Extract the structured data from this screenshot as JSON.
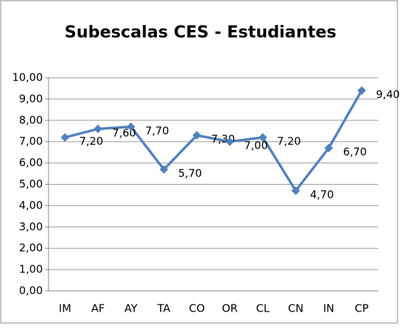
{
  "chart_data": {
    "type": "line",
    "title": "Subescalas CES - Estudiantes",
    "categories": [
      "IM",
      "AF",
      "AY",
      "TA",
      "CO",
      "OR",
      "CL",
      "CN",
      "IN",
      "CP"
    ],
    "values": [
      7.2,
      7.6,
      7.7,
      5.7,
      7.3,
      7.0,
      7.2,
      4.7,
      6.7,
      9.4
    ],
    "value_labels": [
      "7,20",
      "7,60",
      "7,70",
      "5,70",
      "7,30",
      "7,00",
      "7,20",
      "4,70",
      "6,70",
      "9,40"
    ],
    "color": "#4f81bd",
    "ylim": [
      0,
      10
    ],
    "yticks": [
      {
        "value": 0,
        "label": "0,00"
      },
      {
        "value": 1,
        "label": "1,00"
      },
      {
        "value": 2,
        "label": "2,00"
      },
      {
        "value": 3,
        "label": "3,00"
      },
      {
        "value": 4,
        "label": "4,00"
      },
      {
        "value": 5,
        "label": "5,00"
      },
      {
        "value": 6,
        "label": "6,00"
      },
      {
        "value": 7,
        "label": "7,00"
      },
      {
        "value": 8,
        "label": "8,00"
      },
      {
        "value": 9,
        "label": "9,00"
      },
      {
        "value": 10,
        "label": "10,00"
      }
    ],
    "grid": true
  }
}
